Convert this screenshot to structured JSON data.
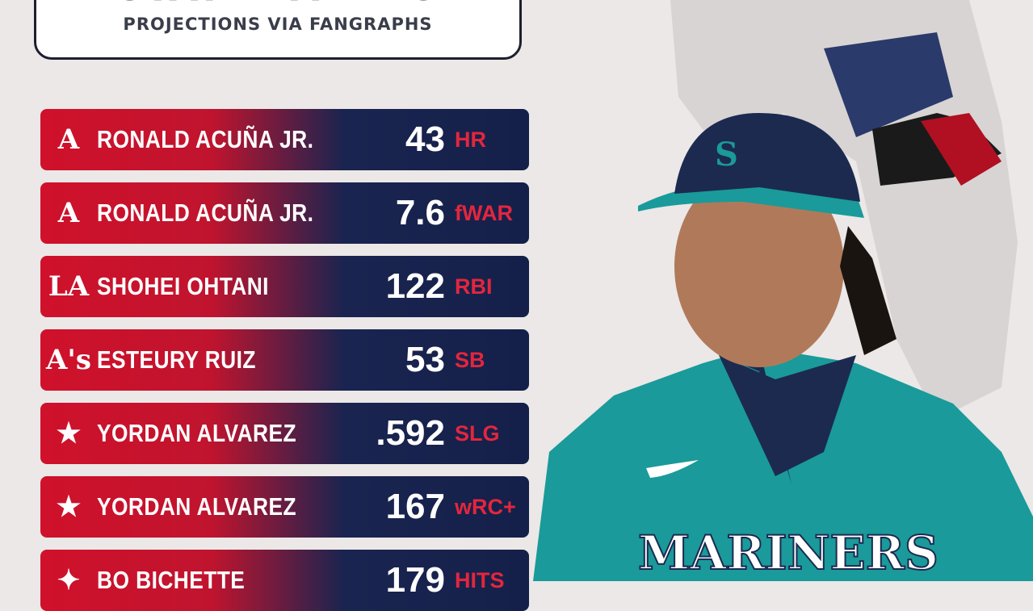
{
  "header": {
    "title": "STAT LEADERS",
    "subtitle": "PROJECTIONS VIA FANGRAPHS"
  },
  "rows": [
    {
      "team": "A",
      "team_icon": "braves-logo",
      "player": "RONALD ACUÑA JR.",
      "value": "43",
      "stat": "HR"
    },
    {
      "team": "A",
      "team_icon": "braves-logo",
      "player": "RONALD ACUÑA JR.",
      "value": "7.6",
      "stat": "fWAR"
    },
    {
      "team": "LA",
      "team_icon": "dodgers-logo",
      "player": "SHOHEI OHTANI",
      "value": "122",
      "stat": "RBI"
    },
    {
      "team": "A's",
      "team_icon": "athletics-logo",
      "player": "ESTEURY RUIZ",
      "value": "53",
      "stat": "SB"
    },
    {
      "team": "★",
      "team_icon": "astros-logo",
      "player": "YORDAN ALVAREZ",
      "value": ".592",
      "stat": "SLG"
    },
    {
      "team": "★",
      "team_icon": "astros-logo",
      "player": "YORDAN ALVAREZ",
      "value": "167",
      "stat": "wRC+"
    },
    {
      "team": "✦",
      "team_icon": "blue-jays-logo",
      "player": "BO BICHETTE",
      "value": "179",
      "stat": "HITS"
    }
  ],
  "photo": {
    "jersey_text": "MARINERS",
    "cap_letter": "S"
  },
  "colors": {
    "red": "#d0112b",
    "navy": "#14204a",
    "teal": "#1a9a9a",
    "background": "#ebe8e7"
  }
}
